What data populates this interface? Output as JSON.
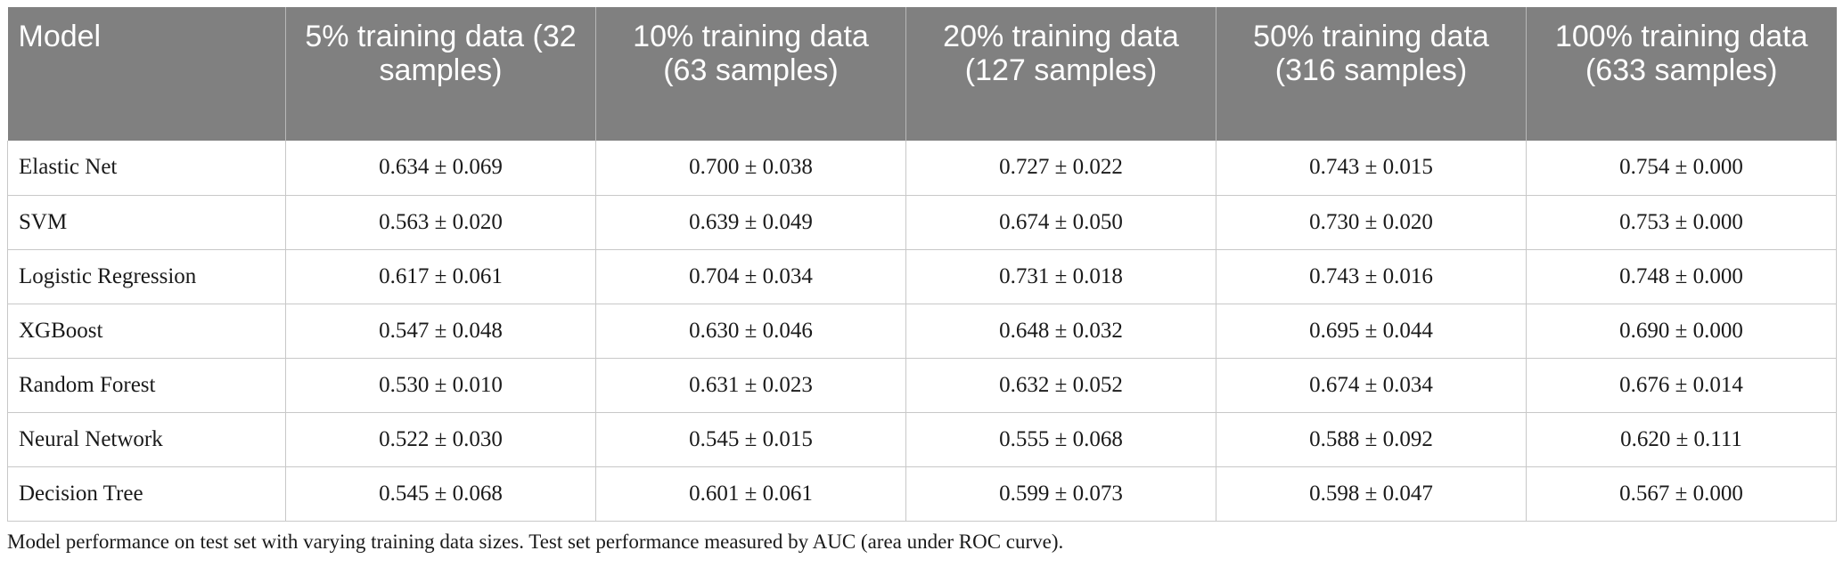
{
  "table": {
    "headers": [
      "Model",
      "5% training data (32 samples)",
      "10% training data (63 samples)",
      "20% training data (127 samples)",
      "50% training data (316 samples)",
      "100% training data (633 samples)"
    ],
    "rows": [
      {
        "model": "Elastic Net",
        "values": [
          "0.634 ± 0.069",
          "0.700 ± 0.038",
          "0.727 ± 0.022",
          "0.743 ± 0.015",
          "0.754 ± 0.000"
        ]
      },
      {
        "model": "SVM",
        "values": [
          "0.563 ± 0.020",
          "0.639 ± 0.049",
          "0.674 ± 0.050",
          "0.730 ± 0.020",
          "0.753 ± 0.000"
        ]
      },
      {
        "model": "Logistic Regression",
        "values": [
          "0.617 ± 0.061",
          "0.704 ± 0.034",
          "0.731 ± 0.018",
          "0.743 ± 0.016",
          "0.748 ± 0.000"
        ]
      },
      {
        "model": "XGBoost",
        "values": [
          "0.547 ± 0.048",
          "0.630 ± 0.046",
          "0.648 ± 0.032",
          "0.695 ± 0.044",
          "0.690 ± 0.000"
        ]
      },
      {
        "model": "Random Forest",
        "values": [
          "0.530 ± 0.010",
          "0.631 ± 0.023",
          "0.632 ± 0.052",
          "0.674 ± 0.034",
          "0.676 ± 0.014"
        ]
      },
      {
        "model": "Neural Network",
        "values": [
          "0.522 ± 0.030",
          "0.545 ± 0.015",
          "0.555 ± 0.068",
          "0.588 ± 0.092",
          "0.620 ± 0.111"
        ]
      },
      {
        "model": "Decision Tree",
        "values": [
          "0.545 ± 0.068",
          "0.601 ± 0.061",
          "0.599 ± 0.073",
          "0.598 ± 0.047",
          "0.567 ± 0.000"
        ]
      }
    ]
  },
  "caption": "Model performance on test set with varying training data sizes. Test set performance measured by AUC (area under ROC curve).",
  "colors": {
    "header_bg": "#808080",
    "header_text": "#ffffff",
    "grid": "#c8c8c8"
  }
}
